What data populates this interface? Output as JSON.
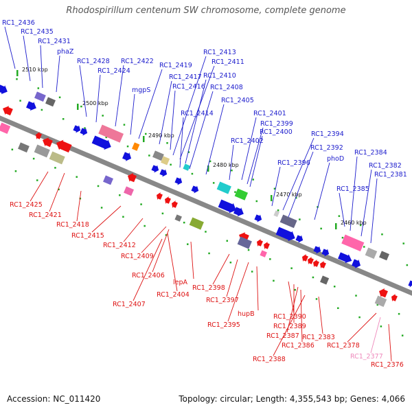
{
  "title": "Rhodospirillum centenum SW chromosome, complete genome",
  "footer": {
    "accession": "Accession: NC_011420",
    "summary": "Topology: circular; Length: 4,355,543 bp; Genes: 4,066"
  },
  "colors": {
    "forward_label": "#1a1acc",
    "reverse_label": "#dd1111",
    "pseudo_label": "#ee88bb",
    "forward_arrow": "#1111dd",
    "reverse_arrow": "#ee1111",
    "backbone": "#888888",
    "scale_tick": "#22aa22"
  },
  "scale": [
    {
      "label": "2510 kbp"
    },
    {
      "label": "2500 kbp"
    },
    {
      "label": "2490 kbp"
    },
    {
      "label": "2480 kbp"
    },
    {
      "label": "2470 kbp"
    },
    {
      "label": "2460 kbp"
    }
  ],
  "genes_top": [
    {
      "label": "RC1_2436"
    },
    {
      "label": "RC1_2435"
    },
    {
      "label": "RC1_2431"
    },
    {
      "label": "phaZ"
    },
    {
      "label": "RC1_2428"
    },
    {
      "label": "RC1_2424"
    },
    {
      "label": "RC1_2422"
    },
    {
      "label": "mgpS"
    },
    {
      "label": "RC1_2419"
    },
    {
      "label": "RC1_2417"
    },
    {
      "label": "RC1_2416"
    },
    {
      "label": "RC1_2414"
    },
    {
      "label": "RC1_2413"
    },
    {
      "label": "RC1_2411"
    },
    {
      "label": "RC1_2410"
    },
    {
      "label": "RC1_2408"
    },
    {
      "label": "RC1_2405"
    },
    {
      "label": "RC1_2402"
    },
    {
      "label": "RC1_2401"
    },
    {
      "label": "RC1_2399"
    },
    {
      "label": "RC1_2400"
    },
    {
      "label": "RC1_2396"
    },
    {
      "label": "RC1_2394"
    },
    {
      "label": "RC1_2392"
    },
    {
      "label": "phoD"
    },
    {
      "label": "RC1_2385"
    },
    {
      "label": "RC1_2384"
    },
    {
      "label": "RC1_2382"
    },
    {
      "label": "RC1_2381"
    }
  ],
  "genes_bottom": [
    {
      "label": "RC1_2425"
    },
    {
      "label": "RC1_2421"
    },
    {
      "label": "RC1_2418"
    },
    {
      "label": "RC1_2415"
    },
    {
      "label": "RC1_2412"
    },
    {
      "label": "RC1_2409"
    },
    {
      "label": "RC1_2406"
    },
    {
      "label": "RC1_2404"
    },
    {
      "label": "RC1_2407"
    },
    {
      "label": "lepA"
    },
    {
      "label": "RC1_2398"
    },
    {
      "label": "RC1_2397"
    },
    {
      "label": "RC1_2395"
    },
    {
      "label": "hupB"
    },
    {
      "label": "RC1_2390"
    },
    {
      "label": "RC1_2389"
    },
    {
      "label": "RC1_2387"
    },
    {
      "label": "RC1_2386"
    },
    {
      "label": "RC1_2388"
    },
    {
      "label": "RC1_2383"
    },
    {
      "label": "RC1_2378"
    },
    {
      "label": "RC1_2377"
    },
    {
      "label": "RC1_2376"
    }
  ]
}
